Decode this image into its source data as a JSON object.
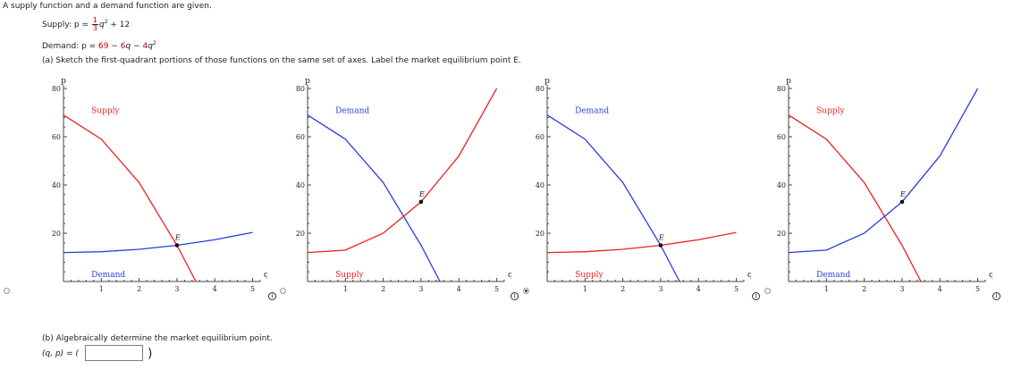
{
  "intro": "A supply function and a demand function are given.",
  "supply_eq": {
    "label": "Supply: ",
    "lhs": "p = ",
    "num": "1",
    "den": "3",
    "var": "q",
    "exp": "2",
    "rest": " + 12"
  },
  "demand_eq": {
    "label": "Demand: ",
    "lhs": "p = ",
    "c1": "69",
    "m1": " − ",
    "c2": "6",
    "v1": "q",
    "m2": " − ",
    "c3": "4",
    "v2": "q",
    "exp": "2"
  },
  "part_a": "(a) Sketch the first-quadrant portions of those functions on the same set of axes. Label the market equilibrium point E.",
  "part_b": "(b) Algebraically determine the market equilibrium point.",
  "answer": {
    "prefix": "(q, p) = (",
    "suffix": ")",
    "value": ""
  },
  "info_glyph": "i",
  "options": [
    {
      "selected": false
    },
    {
      "selected": false
    },
    {
      "selected": true
    },
    {
      "selected": false
    }
  ],
  "colors": {
    "supply_red": "#ee2020",
    "demand_blue": "#2a3de0",
    "text_red": "#c00000",
    "axis": "#444444"
  },
  "chart_data": [
    {
      "type": "line",
      "xlabel": "q",
      "ylabel": "p",
      "xlim": [
        0,
        5.2
      ],
      "ylim": [
        0,
        80
      ],
      "x_ticks": [
        "1",
        "2",
        "3",
        "4",
        "5"
      ],
      "y_ticks": [
        "20",
        "40",
        "60",
        "80"
      ],
      "series": [
        {
          "name": "Supply",
          "color": "#ee2020",
          "points": [
            [
              0,
              69
            ],
            [
              1,
              59
            ],
            [
              2,
              41
            ],
            [
              3,
              15
            ],
            [
              3.5,
              0
            ]
          ]
        },
        {
          "name": "Demand",
          "color": "#2a3de0",
          "points": [
            [
              0,
              12
            ],
            [
              1,
              12.33
            ],
            [
              2,
              13.33
            ],
            [
              3,
              15
            ],
            [
              4,
              17.33
            ],
            [
              5,
              20.33
            ]
          ]
        }
      ],
      "equilibrium": {
        "label": "E",
        "x": 3,
        "y": 15
      },
      "series_labels": [
        {
          "text": "Supply",
          "x": 0.5,
          "y": 71,
          "color": "#ee2020"
        },
        {
          "text": "Demand",
          "x": 0.5,
          "y": 3,
          "color": "#2a3de0"
        }
      ]
    },
    {
      "type": "line",
      "xlabel": "q",
      "ylabel": "p",
      "xlim": [
        0,
        5.2
      ],
      "ylim": [
        0,
        80
      ],
      "x_ticks": [
        "1",
        "2",
        "3",
        "4",
        "5"
      ],
      "y_ticks": [
        "20",
        "40",
        "60",
        "80"
      ],
      "series": [
        {
          "name": "Demand",
          "color": "#2a3de0",
          "points": [
            [
              0,
              69
            ],
            [
              1,
              59
            ],
            [
              2,
              41
            ],
            [
              3,
              15
            ],
            [
              3.5,
              0
            ]
          ]
        },
        {
          "name": "Supply",
          "color": "#ee2020",
          "points": [
            [
              0,
              12
            ],
            [
              1,
              13
            ],
            [
              2,
              20
            ],
            [
              3,
              33
            ],
            [
              4,
              52
            ],
            [
              5,
              80
            ]
          ]
        }
      ],
      "equilibrium": {
        "label": "E",
        "x": 3,
        "y": 33
      },
      "series_labels": [
        {
          "text": "Demand",
          "x": 0.5,
          "y": 71,
          "color": "#2a3de0"
        },
        {
          "text": "Supply",
          "x": 0.5,
          "y": 3,
          "color": "#ee2020"
        }
      ]
    },
    {
      "type": "line",
      "xlabel": "q",
      "ylabel": "p",
      "xlim": [
        0,
        5.2
      ],
      "ylim": [
        0,
        80
      ],
      "x_ticks": [
        "1",
        "2",
        "3",
        "4",
        "5"
      ],
      "y_ticks": [
        "20",
        "40",
        "60",
        "80"
      ],
      "series": [
        {
          "name": "Demand",
          "color": "#2a3de0",
          "points": [
            [
              0,
              69
            ],
            [
              1,
              59
            ],
            [
              2,
              41
            ],
            [
              3,
              15
            ],
            [
              3.5,
              0
            ]
          ]
        },
        {
          "name": "Supply",
          "color": "#ee2020",
          "points": [
            [
              0,
              12
            ],
            [
              1,
              12.33
            ],
            [
              2,
              13.33
            ],
            [
              3,
              15
            ],
            [
              4,
              17.33
            ],
            [
              5,
              20.33
            ]
          ]
        }
      ],
      "equilibrium": {
        "label": "E",
        "x": 3,
        "y": 15
      },
      "series_labels": [
        {
          "text": "Demand",
          "x": 0.5,
          "y": 71,
          "color": "#2a3de0"
        },
        {
          "text": "Supply",
          "x": 0.5,
          "y": 3,
          "color": "#ee2020"
        }
      ]
    },
    {
      "type": "line",
      "xlabel": "q",
      "ylabel": "p",
      "xlim": [
        0,
        5.2
      ],
      "ylim": [
        0,
        80
      ],
      "x_ticks": [
        "1",
        "2",
        "3",
        "4",
        "5"
      ],
      "y_ticks": [
        "20",
        "40",
        "60",
        "80"
      ],
      "series": [
        {
          "name": "Supply",
          "color": "#ee2020",
          "points": [
            [
              0,
              69
            ],
            [
              1,
              59
            ],
            [
              2,
              41
            ],
            [
              3,
              15
            ],
            [
              3.5,
              0
            ]
          ]
        },
        {
          "name": "Demand",
          "color": "#2a3de0",
          "points": [
            [
              0,
              12
            ],
            [
              1,
              13
            ],
            [
              2,
              20
            ],
            [
              3,
              33
            ],
            [
              4,
              52
            ],
            [
              5,
              80
            ]
          ]
        }
      ],
      "equilibrium": {
        "label": "E",
        "x": 3,
        "y": 33
      },
      "series_labels": [
        {
          "text": "Supply",
          "x": 0.5,
          "y": 71,
          "color": "#ee2020"
        },
        {
          "text": "Demand",
          "x": 0.5,
          "y": 3,
          "color": "#2a3de0"
        }
      ]
    }
  ]
}
